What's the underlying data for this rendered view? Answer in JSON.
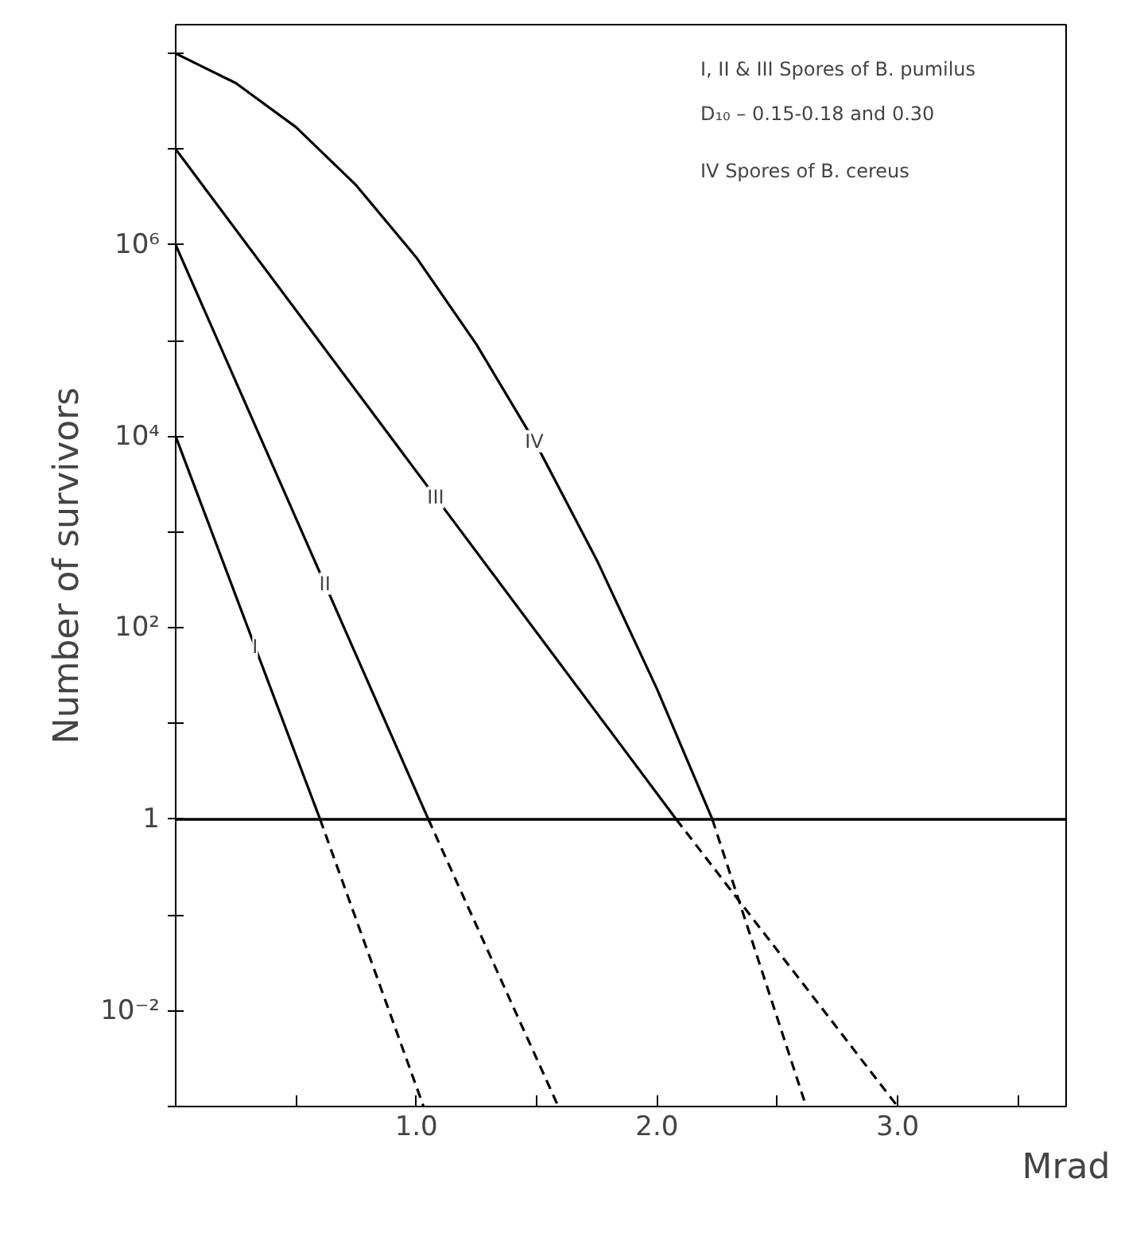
{
  "chart_data": {
    "type": "line",
    "xlabel": "Mrad",
    "ylabel": "Number of survivors",
    "log": "y",
    "xlim": [
      0,
      3.7
    ],
    "ylim": [
      0.001,
      200000000
    ],
    "xticks": [
      {
        "value": 0.5,
        "label": null
      },
      {
        "value": 1.0,
        "label": "1.0"
      },
      {
        "value": 1.5,
        "label": null
      },
      {
        "value": 2.0,
        "label": "2.0"
      },
      {
        "value": 2.5,
        "label": null
      },
      {
        "value": 3.0,
        "label": "3.0"
      },
      {
        "value": 3.5,
        "label": null
      }
    ],
    "yticks": [
      {
        "value": 0.001,
        "label": null
      },
      {
        "value": 0.01,
        "label": "10⁻²"
      },
      {
        "value": 0.1,
        "label": null
      },
      {
        "value": 1,
        "label": "1"
      },
      {
        "value": 10,
        "label": null
      },
      {
        "value": 100,
        "label": "10²"
      },
      {
        "value": 1000,
        "label": null
      },
      {
        "value": 10000,
        "label": "10⁴"
      },
      {
        "value": 100000,
        "label": null
      },
      {
        "value": 1000000,
        "label": "10⁶"
      },
      {
        "value": 10000000,
        "label": null
      },
      {
        "value": 100000000,
        "label": null
      }
    ],
    "ref_lines": [
      {
        "axis": "y",
        "value": 1,
        "label": null,
        "color": "#000000"
      }
    ],
    "series": [
      {
        "color": "#000000",
        "line_style": "solid",
        "x": [
          0,
          0.6
        ],
        "values": [
          10000,
          1
        ]
      },
      {
        "color": "#000000",
        "line_style": "dashed",
        "x": [
          0.6,
          1.03
        ],
        "values": [
          1,
          0.001
        ]
      },
      {
        "color": "#000000",
        "line_style": "solid",
        "x": [
          0,
          1.05
        ],
        "values": [
          1000000,
          1
        ]
      },
      {
        "color": "#000000",
        "line_style": "dashed",
        "x": [
          1.05,
          1.59
        ],
        "values": [
          1,
          0.001
        ]
      },
      {
        "color": "#000000",
        "line_style": "solid",
        "x": [
          0,
          2.08
        ],
        "values": [
          10000000,
          1
        ]
      },
      {
        "color": "#000000",
        "line_style": "dashed",
        "x": [
          2.08,
          3.0
        ],
        "values": [
          1,
          0.001
        ]
      },
      {
        "color": "#000000",
        "line_style": "solid",
        "x": [
          0,
          0.25,
          0.5,
          0.75,
          1.0,
          1.25,
          1.5,
          1.75,
          2.0,
          2.23
        ],
        "values": [
          100000000,
          49000000,
          17000000,
          4200000,
          740000,
          91000,
          8100,
          510,
          23,
          1
        ]
      },
      {
        "color": "#000000",
        "line_style": "dashed",
        "x": [
          2.23,
          2.62
        ],
        "values": [
          1,
          0.001
        ]
      }
    ],
    "annotations": [
      {
        "text": "I",
        "x": 0.33,
        "y": 63
      },
      {
        "text": "II",
        "x": 0.62,
        "y": 290
      },
      {
        "text": "III",
        "x": 1.08,
        "y": 2300
      },
      {
        "text": "IV",
        "x": 1.49,
        "y": 8900
      },
      "I, II & III  Spores of B. pumilus",
      "D₁₀ – 0.15-0.18 and 0.30",
      "IV Spores of B. cereus"
    ]
  }
}
